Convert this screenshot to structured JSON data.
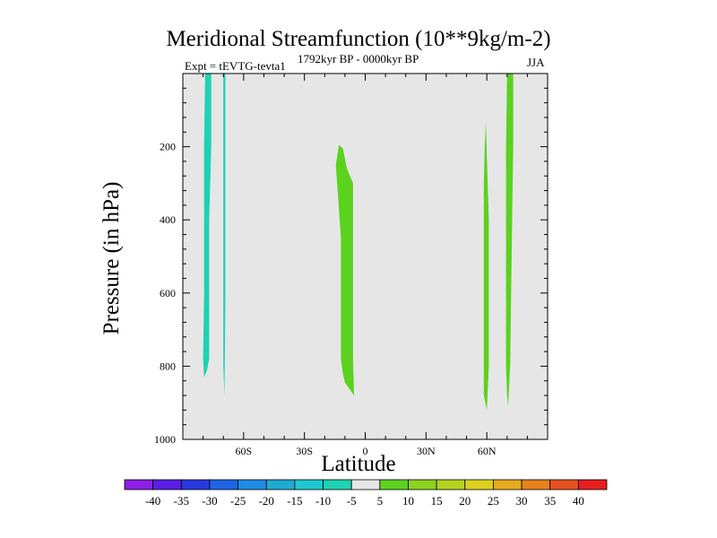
{
  "header": {
    "title": "Meridional Streamfunction (10**9kg/m-2)",
    "experiment": "Expt = tEVTG-tevta1",
    "period": "1792kyr BP - 0000kyr BP",
    "season": "JJA"
  },
  "chart_data": {
    "type": "contour-filled",
    "title": "Meridional Streamfunction (10**9kg/m-2)",
    "xlabel": "Latitude",
    "ylabel": "Pressure (in hPa)",
    "xlim": [
      -90,
      90
    ],
    "ylim": [
      1000,
      0
    ],
    "x_ticks": [
      {
        "value": -60,
        "label": "60S"
      },
      {
        "value": -30,
        "label": "30S"
      },
      {
        "value": 0,
        "label": "0"
      },
      {
        "value": 30,
        "label": "30N"
      },
      {
        "value": 60,
        "label": "60N"
      }
    ],
    "y_ticks": [
      {
        "value": 200,
        "label": "200"
      },
      {
        "value": 400,
        "label": "400"
      },
      {
        "value": 600,
        "label": "600"
      },
      {
        "value": 800,
        "label": "800"
      },
      {
        "value": 1000,
        "label": "1000"
      }
    ],
    "background_color": "#e6e6e6",
    "regions": [
      {
        "name": "sh-high-lat-negative-cell",
        "value": -5,
        "color": "#1ed2b4",
        "outline": [
          [
            -79,
            0
          ],
          [
            -76,
            0
          ],
          [
            -76,
            200
          ],
          [
            -77,
            400
          ],
          [
            -77,
            600
          ],
          [
            -77,
            780
          ],
          [
            -78,
            810
          ],
          [
            -79.5,
            830
          ],
          [
            -80,
            780
          ],
          [
            -79.5,
            600
          ],
          [
            -79.5,
            400
          ],
          [
            -79.5,
            200
          ]
        ]
      },
      {
        "name": "sh-high-lat-negative-thin-cell",
        "value": -5,
        "color": "#1ed2b4",
        "outline": [
          [
            -70,
            0
          ],
          [
            -69,
            0
          ],
          [
            -69,
            300
          ],
          [
            -69,
            600
          ],
          [
            -69.3,
            800
          ],
          [
            -69.5,
            880
          ],
          [
            -70,
            800
          ],
          [
            -70,
            600
          ],
          [
            -70,
            300
          ]
        ]
      },
      {
        "name": "sh-tropical-positive-cell",
        "value": 5,
        "color": "#5ad21e",
        "outline": [
          [
            -13,
            195
          ],
          [
            -11,
            205
          ],
          [
            -9,
            260
          ],
          [
            -6,
            300
          ],
          [
            -6,
            400
          ],
          [
            -6,
            600
          ],
          [
            -6,
            780
          ],
          [
            -5.5,
            880
          ],
          [
            -8,
            860
          ],
          [
            -10,
            845
          ],
          [
            -11,
            820
          ],
          [
            -12,
            780
          ],
          [
            -12,
            600
          ],
          [
            -12,
            450
          ],
          [
            -13.5,
            330
          ],
          [
            -14.5,
            250
          ]
        ]
      },
      {
        "name": "nh-midlat-positive-cell",
        "value": 5,
        "color": "#5ad21e",
        "outline": [
          [
            59.5,
            130
          ],
          [
            60,
            230
          ],
          [
            61,
            400
          ],
          [
            61,
            600
          ],
          [
            61,
            800
          ],
          [
            60,
            920
          ],
          [
            58.5,
            880
          ],
          [
            58.5,
            700
          ],
          [
            58.5,
            500
          ],
          [
            58.5,
            300
          ],
          [
            59,
            200
          ]
        ]
      },
      {
        "name": "nh-high-lat-positive-cell",
        "value": 5,
        "color": "#5ad21e",
        "outline": [
          [
            70,
            0
          ],
          [
            73,
            0
          ],
          [
            73,
            200
          ],
          [
            72.5,
            400
          ],
          [
            72,
            600
          ],
          [
            71.5,
            800
          ],
          [
            70.5,
            910
          ],
          [
            70,
            880
          ],
          [
            69.5,
            800
          ],
          [
            69.5,
            600
          ],
          [
            69.5,
            400
          ],
          [
            69.5,
            200
          ]
        ]
      }
    ],
    "colorbar": {
      "orientation": "horizontal",
      "labels": [
        "-40",
        "-35",
        "-30",
        "-25",
        "-20",
        "-15",
        "-10",
        "-5",
        "5",
        "10",
        "15",
        "20",
        "25",
        "30",
        "35",
        "40"
      ],
      "colors": [
        "#8c1ee6",
        "#5a1ee6",
        "#2838e0",
        "#1e64e6",
        "#1e8ce6",
        "#1eaad2",
        "#1ec8d2",
        "#1ed2b4",
        "#e6e6e6",
        "#5ad21e",
        "#8cd21e",
        "#b4d21e",
        "#dcd21e",
        "#e6aa1e",
        "#e6821e",
        "#e6501e",
        "#e61e1e"
      ]
    }
  }
}
